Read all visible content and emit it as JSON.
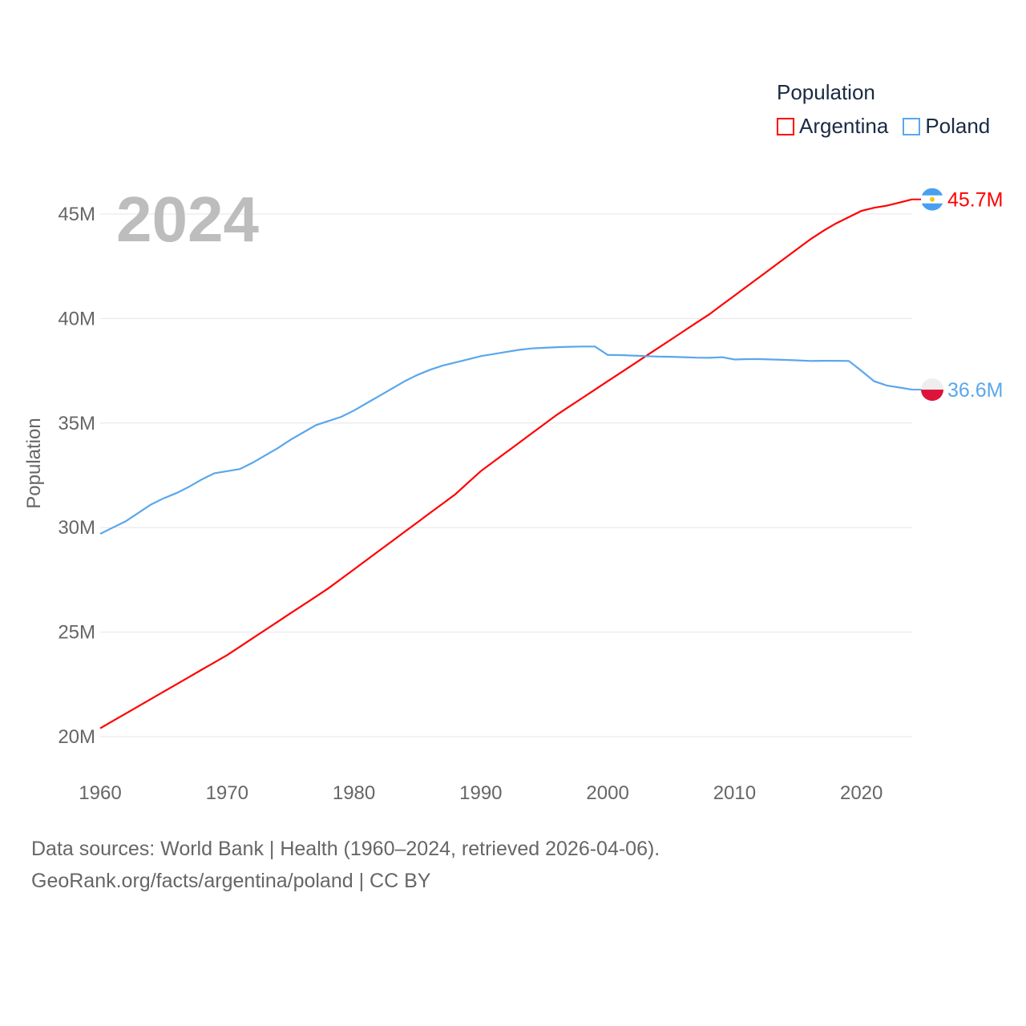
{
  "legend": {
    "title": "Population",
    "items": [
      {
        "label": "Argentina",
        "color": "#ff0000"
      },
      {
        "label": "Poland",
        "color": "#5aa7ec"
      }
    ]
  },
  "current_year": "2024",
  "footer": {
    "line1": "Data sources: World Bank | Health (1960–2024, retrieved 2026-04-06).",
    "line2": "GeoRank.org/facts/argentina/poland | CC BY"
  },
  "chart_data": {
    "type": "line",
    "title": "Population",
    "xlabel": "",
    "ylabel": "Population",
    "xlim": [
      1960,
      2024
    ],
    "ylim": [
      20,
      45
    ],
    "x_ticks": [
      "1960",
      "1970",
      "1980",
      "1990",
      "2000",
      "2010",
      "2020"
    ],
    "y_ticks": [
      "20M",
      "25M",
      "30M",
      "35M",
      "40M",
      "45M"
    ],
    "grid": true,
    "legend_position": "top-right",
    "x_start": 1960,
    "series": [
      {
        "name": "Argentina",
        "color": "#ff0000",
        "end_label": "45.7M",
        "values": [
          20.4,
          20.75,
          21.1,
          21.45,
          21.8,
          22.15,
          22.5,
          22.85,
          23.2,
          23.55,
          23.9,
          24.3,
          24.7,
          25.1,
          25.5,
          25.9,
          26.3,
          26.7,
          27.1,
          27.55,
          28.0,
          28.45,
          28.9,
          29.35,
          29.8,
          30.25,
          30.7,
          31.15,
          31.6,
          32.15,
          32.7,
          33.15,
          33.6,
          34.05,
          34.5,
          34.95,
          35.4,
          35.8,
          36.2,
          36.6,
          37.0,
          37.4,
          37.8,
          38.2,
          38.6,
          39.0,
          39.4,
          39.8,
          40.2,
          40.65,
          41.1,
          41.55,
          42.0,
          42.45,
          42.9,
          43.35,
          43.8,
          44.2,
          44.55,
          44.85,
          45.15,
          45.3,
          45.4,
          45.55,
          45.7
        ]
      },
      {
        "name": "Poland",
        "color": "#5aa7ec",
        "end_label": "36.6M",
        "values": [
          29.7,
          30.0,
          30.3,
          30.7,
          31.1,
          31.4,
          31.65,
          31.95,
          32.3,
          32.6,
          32.7,
          32.8,
          33.1,
          33.45,
          33.8,
          34.2,
          34.55,
          34.9,
          35.1,
          35.3,
          35.6,
          35.95,
          36.3,
          36.65,
          37.0,
          37.3,
          37.55,
          37.75,
          37.9,
          38.05,
          38.2,
          38.3,
          38.4,
          38.5,
          38.57,
          38.6,
          38.63,
          38.65,
          38.66,
          38.66,
          38.26,
          38.25,
          38.23,
          38.2,
          38.18,
          38.17,
          38.15,
          38.13,
          38.12,
          38.15,
          38.04,
          38.06,
          38.06,
          38.04,
          38.02,
          38.0,
          37.97,
          37.98,
          37.98,
          37.97,
          37.5,
          37.0,
          36.8,
          36.7,
          36.6
        ]
      }
    ]
  }
}
